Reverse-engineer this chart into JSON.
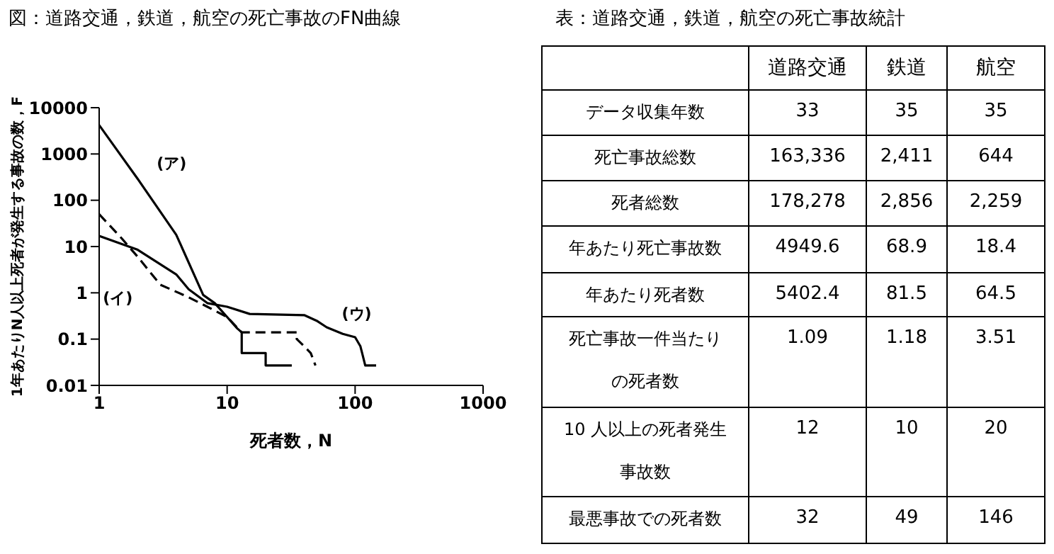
{
  "chart_data": [
    {
      "type": "line",
      "title": "図：道路交通，鉄道，航空の死亡事故のFN曲線",
      "xlabel": "死者数，N",
      "ylabel": "1年あたりN人以上死者が発生する事故の数，F",
      "log": "xy",
      "xlim": [
        1,
        1000
      ],
      "xticks": [
        1,
        10,
        100,
        1000
      ],
      "ylim": [
        0.01,
        10000
      ],
      "yticks": [
        0.01,
        0.1,
        1,
        10,
        100,
        1000,
        10000
      ],
      "grid": false,
      "legend": false,
      "series": [
        {
          "name": "(ア)",
          "color": "#000000",
          "line_style": "solid",
          "x": [
            1,
            2,
            4,
            6.5,
            8,
            10,
            12,
            13,
            13,
            20,
            20,
            32
          ],
          "values": [
            4200,
            290,
            18,
            0.9,
            0.6,
            0.3,
            0.17,
            0.14,
            0.05,
            0.05,
            0.027,
            0.027
          ]
        },
        {
          "name": "(イ)",
          "color": "#000000",
          "line_style": "dashed",
          "x": [
            1,
            1.5,
            2,
            3,
            5,
            7,
            10,
            13,
            35,
            35,
            40,
            45,
            49
          ],
          "values": [
            50,
            15,
            6,
            1.5,
            0.8,
            0.5,
            0.3,
            0.14,
            0.14,
            0.1,
            0.07,
            0.05,
            0.027
          ]
        },
        {
          "name": "(ウ)",
          "color": "#000000",
          "line_style": "solid",
          "x": [
            1,
            2,
            4,
            5,
            7,
            10,
            15,
            40,
            50,
            60,
            80,
            100,
            110,
            120,
            146
          ],
          "values": [
            17,
            8.5,
            2.5,
            1.2,
            0.6,
            0.5,
            0.35,
            0.33,
            0.25,
            0.18,
            0.13,
            0.11,
            0.07,
            0.027,
            0.027
          ]
        }
      ]
    },
    {
      "type": "other",
      "title": "表：道路交通，鉄道，航空の死亡事故統計",
      "categories": [
        "道路交通",
        "鉄道",
        "航空"
      ],
      "y_categories": [
        "データ収集年数",
        "死亡事故総数",
        "死者総数",
        "年あたり死亡事故数",
        "年あたり死者数",
        "死亡事故一件当たりの死者数",
        "10 人以上の死者発生事故数",
        "最悪事故での死者数"
      ],
      "cell_labels": [
        [
          "33",
          "35",
          "35"
        ],
        [
          "163,336",
          "2,411",
          "644"
        ],
        [
          "178,278",
          "2,856",
          "2,259"
        ],
        [
          "4949.6",
          "68.9",
          "18.4"
        ],
        [
          "5402.4",
          "81.5",
          "64.5"
        ],
        [
          "1.09",
          "1.18",
          "3.51"
        ],
        [
          "12",
          "10",
          "20"
        ],
        [
          "32",
          "49",
          "146"
        ]
      ]
    }
  ]
}
